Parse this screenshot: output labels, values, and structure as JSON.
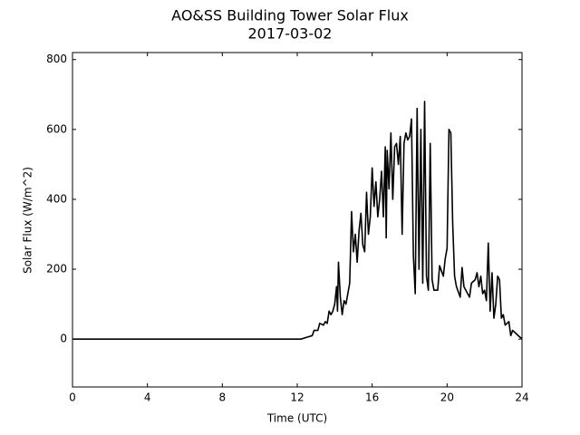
{
  "chart_data": {
    "type": "line",
    "title": "AO&SS Building Tower Solar Flux",
    "subtitle": "2017-03-02",
    "x_label": "Time (UTC)",
    "y_label": "Solar Flux (W/m^2)",
    "xlim": [
      0,
      24
    ],
    "xticks": [
      0,
      4,
      8,
      12,
      16,
      20,
      24
    ],
    "ylim": [
      -137,
      820
    ],
    "yticks": [
      0,
      200,
      400,
      600,
      800
    ],
    "grid": false,
    "x": [
      0,
      12.2,
      12.5,
      12.8,
      12.9,
      13.1,
      13.2,
      13.4,
      13.5,
      13.6,
      13.7,
      13.8,
      13.9,
      14.0,
      14.1,
      14.15,
      14.2,
      14.3,
      14.4,
      14.5,
      14.6,
      14.7,
      14.8,
      14.9,
      15.0,
      15.1,
      15.2,
      15.3,
      15.4,
      15.5,
      15.6,
      15.7,
      15.8,
      15.9,
      16.0,
      16.1,
      16.2,
      16.3,
      16.4,
      16.5,
      16.6,
      16.7,
      16.75,
      16.8,
      16.9,
      17.0,
      17.1,
      17.2,
      17.3,
      17.4,
      17.5,
      17.6,
      17.7,
      17.8,
      17.9,
      18.0,
      18.1,
      18.2,
      18.3,
      18.4,
      18.5,
      18.6,
      18.7,
      18.8,
      18.9,
      19.0,
      19.1,
      19.2,
      19.3,
      19.5,
      19.6,
      19.8,
      19.9,
      20.0,
      20.1,
      20.2,
      20.3,
      20.4,
      20.5,
      20.7,
      20.8,
      20.9,
      21.0,
      21.2,
      21.3,
      21.5,
      21.6,
      21.7,
      21.8,
      21.9,
      22.0,
      22.1,
      22.2,
      22.3,
      22.4,
      22.5,
      22.6,
      22.7,
      22.8,
      22.9,
      23.0,
      23.1,
      23.3,
      23.4,
      23.5,
      23.7,
      23.9,
      24
    ],
    "series": [
      {
        "color": "#000000",
        "values": [
          0,
          0,
          5,
          10,
          25,
          25,
          45,
          40,
          50,
          45,
          80,
          70,
          80,
          100,
          150,
          80,
          220,
          120,
          70,
          110,
          100,
          130,
          160,
          365,
          250,
          300,
          220,
          310,
          360,
          270,
          250,
          420,
          300,
          350,
          490,
          380,
          450,
          350,
          400,
          480,
          350,
          550,
          290,
          540,
          430,
          590,
          400,
          550,
          560,
          500,
          580,
          300,
          560,
          590,
          570,
          580,
          630,
          240,
          130,
          660,
          200,
          600,
          160,
          680,
          180,
          140,
          560,
          170,
          140,
          140,
          210,
          180,
          230,
          260,
          600,
          590,
          330,
          180,
          150,
          120,
          205,
          150,
          140,
          120,
          160,
          170,
          190,
          150,
          180,
          130,
          140,
          110,
          275,
          80,
          190,
          60,
          100,
          180,
          170,
          60,
          70,
          40,
          50,
          10,
          25,
          15,
          5,
          2
        ]
      }
    ]
  }
}
